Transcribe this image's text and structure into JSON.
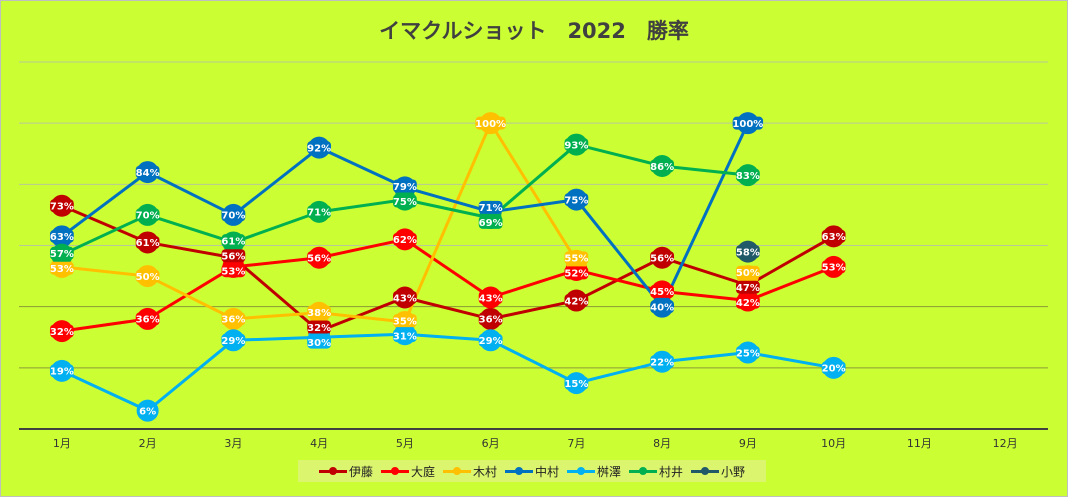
{
  "chart_data": {
    "type": "line",
    "title": "イマクルショット　2022　勝率",
    "categories": [
      "1月",
      "2月",
      "3月",
      "4月",
      "5月",
      "6月",
      "7月",
      "8月",
      "9月",
      "10月",
      "11月",
      "12月"
    ],
    "ylim": [
      0,
      120
    ],
    "ytick_step": 20,
    "grid": true,
    "legend": "bottom",
    "value_suffix": "%",
    "series": [
      {
        "name": "伊藤",
        "color": "#c00000",
        "values": [
          73,
          61,
          56,
          32,
          43,
          36,
          42,
          56,
          47,
          63,
          null,
          null
        ]
      },
      {
        "name": "大庭",
        "color": "#ff0000",
        "values": [
          32,
          36,
          53,
          56,
          62,
          43,
          52,
          45,
          42,
          53,
          null,
          null
        ]
      },
      {
        "name": "木村",
        "color": "#ffc000",
        "values": [
          53,
          50,
          36,
          38,
          35,
          100,
          55,
          null,
          50,
          null,
          null,
          null
        ]
      },
      {
        "name": "中村",
        "color": "#0070c0",
        "values": [
          63,
          84,
          70,
          92,
          79,
          71,
          75,
          40,
          100,
          null,
          null,
          null
        ]
      },
      {
        "name": "桝澤",
        "color": "#00b0f0",
        "values": [
          19,
          6,
          29,
          30,
          31,
          29,
          15,
          22,
          25,
          20,
          null,
          null
        ]
      },
      {
        "name": "村井",
        "color": "#00b050",
        "values": [
          57,
          70,
          61,
          71,
          75,
          69,
          93,
          86,
          83,
          null,
          null,
          null
        ]
      },
      {
        "name": "小野",
        "color": "#215968",
        "values": [
          null,
          null,
          null,
          null,
          null,
          null,
          null,
          null,
          58,
          null,
          null,
          null
        ]
      }
    ]
  }
}
